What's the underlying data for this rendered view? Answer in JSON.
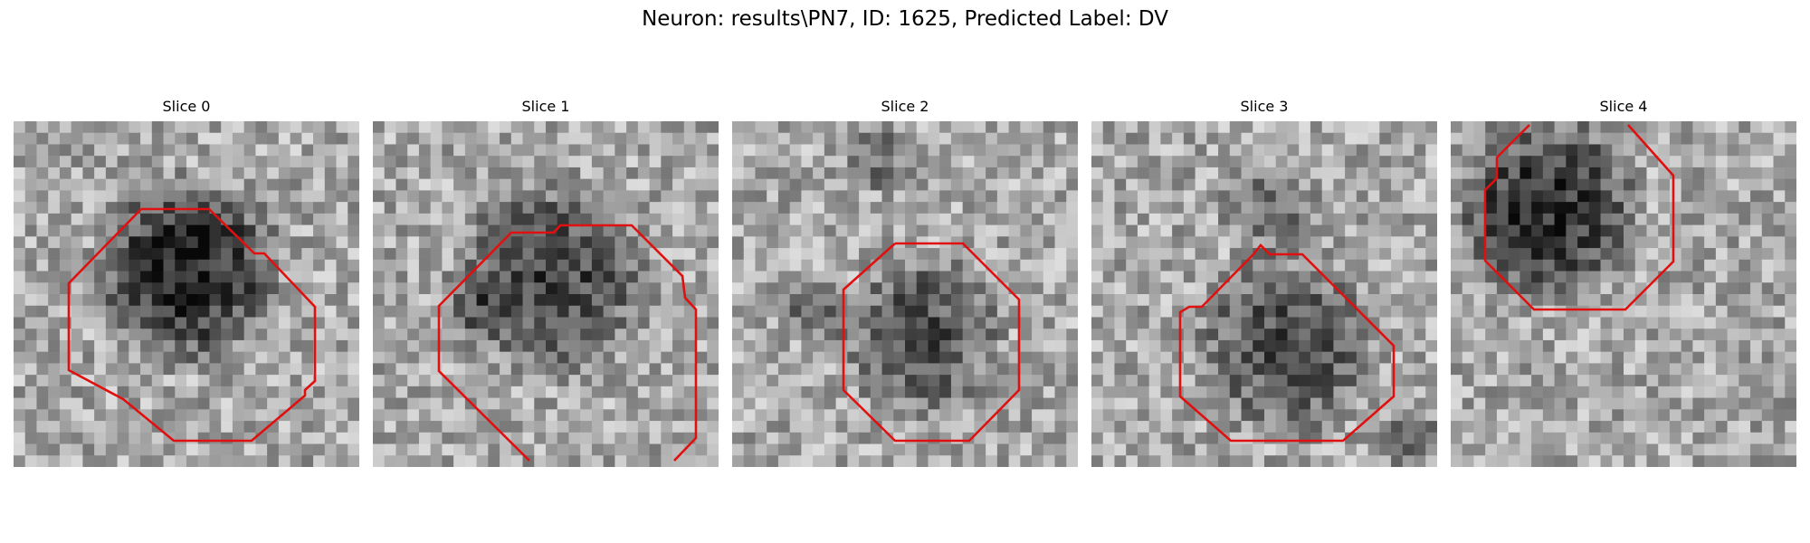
{
  "title": "Neuron: results\\PN7, ID: 1625, Predicted Label: DV",
  "colors": {
    "contour": "#e01010",
    "background": "#ffffff"
  },
  "panels": [
    {
      "title": "Slice 0"
    },
    {
      "title": "Slice 1"
    },
    {
      "title": "Slice 2"
    },
    {
      "title": "Slice 3"
    },
    {
      "title": "Slice 4"
    }
  ]
}
